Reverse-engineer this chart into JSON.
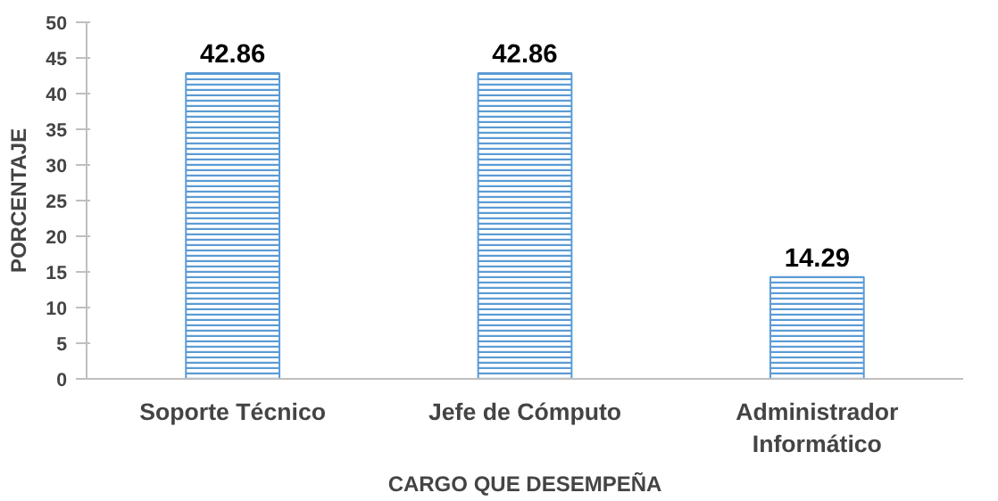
{
  "chart_data": {
    "type": "bar",
    "xlabel": "CARGO QUE DESEMPEÑA",
    "ylabel": "PORCENTAJE",
    "categories": [
      "Soporte Técnico",
      "Jefe de Cómputo",
      "Administrador\nInformático"
    ],
    "values": [
      42.86,
      42.86,
      14.29
    ],
    "color": "#5b9bd5",
    "data_labels": true,
    "ylim": [
      0,
      50
    ],
    "yticks": [
      0,
      5,
      10,
      15,
      20,
      25,
      30,
      35,
      40,
      45,
      50
    ],
    "grid": false
  }
}
